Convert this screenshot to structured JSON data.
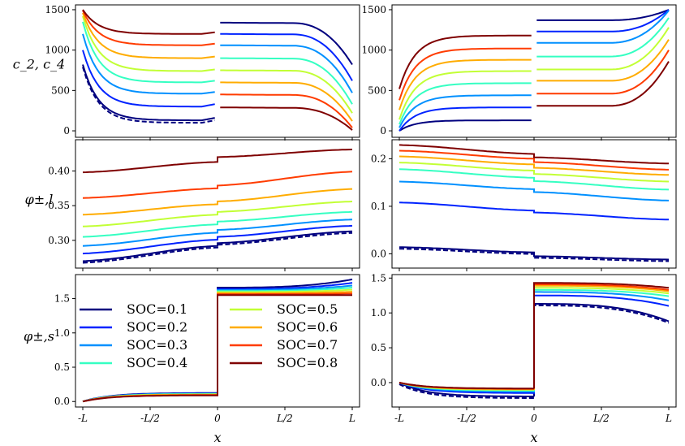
{
  "chart_data": {
    "type": "line",
    "layout": "3 rows x 2 columns",
    "x_axis": {
      "xlabel": "x",
      "ticks": [
        "-L",
        "-L/2",
        "0",
        "L/2",
        "L"
      ],
      "xlim": [
        -1,
        1
      ]
    },
    "legend": {
      "placement": "bottom-left panel, two columns",
      "entries": [
        {
          "name": "SOC=0.1",
          "color": "#00007f"
        },
        {
          "name": "SOC=0.2",
          "color": "#0023ff"
        },
        {
          "name": "SOC=0.3",
          "color": "#0090ff"
        },
        {
          "name": "SOC=0.4",
          "color": "#35ffc2"
        },
        {
          "name": "SOC=0.5",
          "color": "#c2ff35"
        },
        {
          "name": "SOC=0.6",
          "color": "#ffac00"
        },
        {
          "name": "SOC=0.7",
          "color": "#ff3c00"
        },
        {
          "name": "SOC=0.8",
          "color": "#7f0000"
        }
      ]
    },
    "panels": [
      {
        "id": "c-left",
        "ylabel": "c_2, c_4",
        "ylim": [
          -80,
          1560
        ],
        "yticks": [
          0,
          500,
          1000,
          1500
        ],
        "series": [
          {
            "soc": "0.1",
            "anode": {
              "start": 820,
              "plateau": 130,
              "end": 160
            },
            "cathode": {
              "start": 1340,
              "plateau": 1330,
              "end": 820
            },
            "dashed": true
          },
          {
            "soc": "0.2",
            "anode": {
              "start": 1000,
              "plateau": 300,
              "end": 330
            },
            "cathode": {
              "start": 1200,
              "plateau": 1190,
              "end": 620
            }
          },
          {
            "soc": "0.3",
            "anode": {
              "start": 1200,
              "plateau": 460,
              "end": 480
            },
            "cathode": {
              "start": 1060,
              "plateau": 1050,
              "end": 470
            }
          },
          {
            "soc": "0.4",
            "anode": {
              "start": 1350,
              "plateau": 600,
              "end": 620
            },
            "cathode": {
              "start": 900,
              "plateau": 890,
              "end": 330
            }
          },
          {
            "soc": "0.5",
            "anode": {
              "start": 1420,
              "plateau": 740,
              "end": 760
            },
            "cathode": {
              "start": 750,
              "plateau": 740,
              "end": 220
            }
          },
          {
            "soc": "0.6",
            "anode": {
              "start": 1460,
              "plateau": 900,
              "end": 920
            },
            "cathode": {
              "start": 600,
              "plateau": 590,
              "end": 120
            }
          },
          {
            "soc": "0.7",
            "anode": {
              "start": 1490,
              "plateau": 1060,
              "end": 1080
            },
            "cathode": {
              "start": 450,
              "plateau": 440,
              "end": 40
            }
          },
          {
            "soc": "0.8",
            "anode": {
              "start": 1500,
              "plateau": 1200,
              "end": 1220
            },
            "cathode": {
              "start": 290,
              "plateau": 280,
              "end": 10
            }
          }
        ]
      },
      {
        "id": "c-right",
        "ylabel": "",
        "ylim": [
          -80,
          1560
        ],
        "yticks": [
          0,
          500,
          1000,
          1500
        ],
        "series": [
          {
            "soc": "0.1",
            "anode": {
              "start": 0,
              "plateau": 130,
              "end": 130
            },
            "cathode": {
              "start": 1370,
              "plateau": 1370,
              "end": 1500
            }
          },
          {
            "soc": "0.2",
            "anode": {
              "start": 0,
              "plateau": 290,
              "end": 290
            },
            "cathode": {
              "start": 1230,
              "plateau": 1230,
              "end": 1500
            }
          },
          {
            "soc": "0.3",
            "anode": {
              "start": 40,
              "plateau": 440,
              "end": 440
            },
            "cathode": {
              "start": 1090,
              "plateau": 1090,
              "end": 1490
            }
          },
          {
            "soc": "0.4",
            "anode": {
              "start": 80,
              "plateau": 590,
              "end": 590
            },
            "cathode": {
              "start": 920,
              "plateau": 920,
              "end": 1400
            }
          },
          {
            "soc": "0.5",
            "anode": {
              "start": 140,
              "plateau": 740,
              "end": 740
            },
            "cathode": {
              "start": 760,
              "plateau": 760,
              "end": 1280
            }
          },
          {
            "soc": "0.6",
            "anode": {
              "start": 260,
              "plateau": 880,
              "end": 880
            },
            "cathode": {
              "start": 620,
              "plateau": 620,
              "end": 1130
            }
          },
          {
            "soc": "0.7",
            "anode": {
              "start": 380,
              "plateau": 1020,
              "end": 1030
            },
            "cathode": {
              "start": 460,
              "plateau": 460,
              "end": 1000
            }
          },
          {
            "soc": "0.8",
            "anode": {
              "start": 520,
              "plateau": 1180,
              "end": 1180
            },
            "cathode": {
              "start": 310,
              "plateau": 310,
              "end": 860
            }
          }
        ]
      },
      {
        "id": "phil-left",
        "ylabel": "φ±,l",
        "ylim": [
          0.26,
          0.445
        ],
        "yticks": [
          0.3,
          0.35,
          0.4
        ],
        "series": [
          {
            "soc": "0.1",
            "left": [
              0.27,
              0.292
            ],
            "right": [
              0.296,
              0.313
            ],
            "dashed": true
          },
          {
            "soc": "0.2",
            "left": [
              0.281,
              0.301
            ],
            "right": [
              0.305,
              0.321
            ]
          },
          {
            "soc": "0.3",
            "left": [
              0.292,
              0.311
            ],
            "right": [
              0.315,
              0.33
            ]
          },
          {
            "soc": "0.4",
            "left": [
              0.305,
              0.323
            ],
            "right": [
              0.327,
              0.341
            ]
          },
          {
            "soc": "0.5",
            "left": [
              0.32,
              0.337
            ],
            "right": [
              0.341,
              0.356
            ]
          },
          {
            "soc": "0.6",
            "left": [
              0.337,
              0.352
            ],
            "right": [
              0.356,
              0.374
            ]
          },
          {
            "soc": "0.7",
            "left": [
              0.361,
              0.375
            ],
            "right": [
              0.379,
              0.399
            ]
          },
          {
            "soc": "0.8",
            "left": [
              0.398,
              0.413
            ],
            "right": [
              0.42,
              0.431
            ]
          }
        ]
      },
      {
        "id": "phil-right",
        "ylabel": "",
        "ylim": [
          -0.03,
          0.24
        ],
        "yticks": [
          0.0,
          0.1,
          0.2
        ],
        "series": [
          {
            "soc": "0.1",
            "left": [
              0.014,
              0.003
            ],
            "right": [
              -0.005,
              -0.012
            ],
            "dashed": true
          },
          {
            "soc": "0.2",
            "left": [
              0.108,
              0.091
            ],
            "right": [
              0.087,
              0.072
            ]
          },
          {
            "soc": "0.3",
            "left": [
              0.152,
              0.136
            ],
            "right": [
              0.13,
              0.112
            ]
          },
          {
            "soc": "0.4",
            "left": [
              0.178,
              0.16
            ],
            "right": [
              0.153,
              0.135
            ]
          },
          {
            "soc": "0.5",
            "left": [
              0.192,
              0.175
            ],
            "right": [
              0.168,
              0.152
            ]
          },
          {
            "soc": "0.6",
            "left": [
              0.205,
              0.188
            ],
            "right": [
              0.181,
              0.166
            ]
          },
          {
            "soc": "0.7",
            "left": [
              0.217,
              0.2
            ],
            "right": [
              0.193,
              0.177
            ]
          },
          {
            "soc": "0.8",
            "left": [
              0.229,
              0.21
            ],
            "right": [
              0.203,
              0.19
            ]
          }
        ]
      },
      {
        "id": "phis-left",
        "ylabel": "φ±,s",
        "ylim": [
          -0.08,
          1.85
        ],
        "yticks": [
          0.0,
          0.5,
          1.0,
          1.5
        ],
        "series": [
          {
            "soc": "0.1",
            "left_end": 0.125,
            "right_start": 1.66,
            "right_end": 1.78
          },
          {
            "soc": "0.2",
            "left_end": 0.12,
            "right_start": 1.64,
            "right_end": 1.73
          },
          {
            "soc": "0.3",
            "left_end": 0.115,
            "right_start": 1.625,
            "right_end": 1.69
          },
          {
            "soc": "0.4",
            "left_end": 0.11,
            "right_start": 1.61,
            "right_end": 1.66
          },
          {
            "soc": "0.5",
            "left_end": 0.105,
            "right_start": 1.595,
            "right_end": 1.63
          },
          {
            "soc": "0.6",
            "left_end": 0.1,
            "right_start": 1.58,
            "right_end": 1.6
          },
          {
            "soc": "0.7",
            "left_end": 0.095,
            "right_start": 1.565,
            "right_end": 1.575
          },
          {
            "soc": "0.8",
            "left_end": 0.09,
            "right_start": 1.55,
            "right_end": 1.55
          }
        ]
      },
      {
        "id": "phis-right",
        "ylabel": "",
        "ylim": [
          -0.35,
          1.55
        ],
        "yticks": [
          0.0,
          0.5,
          1.0,
          1.5
        ],
        "series": [
          {
            "soc": "0.1",
            "left_end": -0.2,
            "right_start": 1.13,
            "right_end": 0.88,
            "dashed": true
          },
          {
            "soc": "0.2",
            "left_end": -0.15,
            "right_start": 1.25,
            "right_end": 1.1
          },
          {
            "soc": "0.3",
            "left_end": -0.13,
            "right_start": 1.3,
            "right_end": 1.18
          },
          {
            "soc": "0.4",
            "left_end": -0.115,
            "right_start": 1.33,
            "right_end": 1.24
          },
          {
            "soc": "0.5",
            "left_end": -0.105,
            "right_start": 1.36,
            "right_end": 1.28
          },
          {
            "soc": "0.6",
            "left_end": -0.095,
            "right_start": 1.39,
            "right_end": 1.31
          },
          {
            "soc": "0.7",
            "left_end": -0.09,
            "right_start": 1.41,
            "right_end": 1.33
          },
          {
            "soc": "0.8",
            "left_end": -0.085,
            "right_start": 1.43,
            "right_end": 1.36
          }
        ]
      }
    ]
  }
}
